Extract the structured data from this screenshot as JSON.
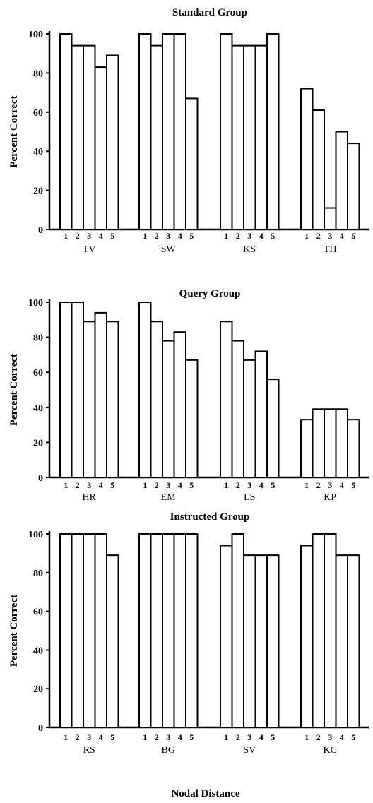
{
  "chart_data": [
    {
      "type": "bar",
      "title": "Standard Group",
      "ylabel": "Percent Correct",
      "xlabel": "",
      "ylim": [
        0,
        100
      ],
      "yticks": [
        0,
        20,
        40,
        60,
        80,
        100
      ],
      "bar_labels": [
        "1",
        "2",
        "3",
        "4",
        "5"
      ],
      "groups": [
        {
          "name": "TV",
          "values": [
            100,
            94,
            94,
            83,
            89
          ]
        },
        {
          "name": "SW",
          "values": [
            100,
            94,
            100,
            100,
            67
          ]
        },
        {
          "name": "KS",
          "values": [
            100,
            94,
            94,
            94,
            100
          ]
        },
        {
          "name": "TH",
          "values": [
            72,
            61,
            11,
            50,
            44
          ]
        }
      ]
    },
    {
      "type": "bar",
      "title": "Query Group",
      "ylabel": "Percent Correct",
      "xlabel": "",
      "ylim": [
        0,
        100
      ],
      "yticks": [
        0,
        20,
        40,
        60,
        80,
        100
      ],
      "bar_labels": [
        "1",
        "2",
        "3",
        "4",
        "5"
      ],
      "groups": [
        {
          "name": "HR",
          "values": [
            100,
            100,
            89,
            94,
            89
          ]
        },
        {
          "name": "EM",
          "values": [
            100,
            89,
            78,
            83,
            67
          ]
        },
        {
          "name": "LS",
          "values": [
            89,
            78,
            67,
            72,
            56
          ]
        },
        {
          "name": "KP",
          "values": [
            33,
            39,
            39,
            39,
            33
          ]
        }
      ]
    },
    {
      "type": "bar",
      "title": "Instructed Group",
      "ylabel": "Percent Correct",
      "xlabel": "Nodal Distance",
      "ylim": [
        0,
        100
      ],
      "yticks": [
        0,
        20,
        40,
        60,
        80,
        100
      ],
      "bar_labels": [
        "1",
        "2",
        "3",
        "4",
        "5"
      ],
      "groups": [
        {
          "name": "RS",
          "values": [
            100,
            100,
            100,
            100,
            89
          ]
        },
        {
          "name": "BG",
          "values": [
            100,
            100,
            100,
            100,
            100
          ]
        },
        {
          "name": "SV",
          "values": [
            94,
            100,
            89,
            89,
            89
          ]
        },
        {
          "name": "KC",
          "values": [
            94,
            100,
            100,
            89,
            89
          ]
        }
      ]
    }
  ]
}
